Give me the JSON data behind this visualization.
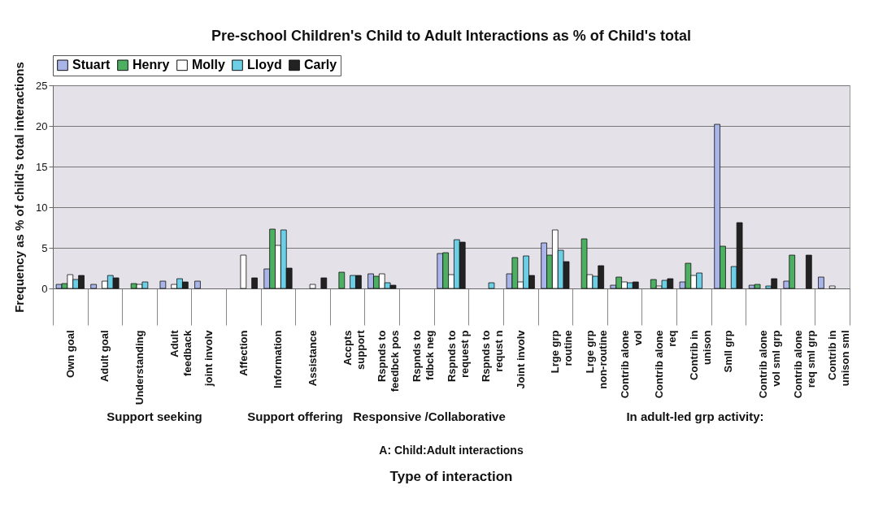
{
  "chart_data": {
    "type": "bar",
    "title": "Pre-school Children's Child to Adult Interactions as % of Child's total",
    "xlabel": "Type of interaction",
    "ylabel": "Frequency as % of child's total interactions",
    "categories": [
      "Own goal",
      "Adult goal",
      "Understanding",
      "Adult feedback",
      "joint involv",
      "Affection",
      "Information",
      "Assistance",
      "Accpts support",
      "Rspnds to feedbck pos",
      "Rspnds to fdbck neg",
      "Rspnds to request p",
      "Rspnds to requst n",
      "Joint involv",
      "Lrge grp routine",
      "Lrge grp non-routine",
      "Contrib alone vol",
      "Contrib alone req",
      "Contrib in unison",
      "Smll grp",
      "Contrib alone vol sml grp",
      "Contrib alone req sml grp",
      "Contrib in unison sml"
    ],
    "series": [
      {
        "name": "Stuart",
        "color": "#a9b4e8",
        "values": [
          0.5,
          0.5,
          0,
          0.9,
          0.9,
          0,
          2.4,
          0,
          0,
          1.8,
          0,
          4.3,
          0,
          1.8,
          5.6,
          0,
          0.4,
          0,
          0.8,
          20.2,
          0.4,
          0.9,
          1.4
        ]
      },
      {
        "name": "Henry",
        "color": "#4caf62",
        "values": [
          0.6,
          0,
          0.6,
          0,
          0,
          0,
          7.3,
          0,
          2.0,
          1.5,
          0,
          4.4,
          0,
          3.8,
          4.1,
          6.1,
          1.4,
          1.1,
          3.1,
          5.2,
          0.5,
          4.1,
          0
        ]
      },
      {
        "name": "Molly",
        "color": "#ffffff",
        "values": [
          1.7,
          0.9,
          0.5,
          0.5,
          0,
          4.1,
          5.3,
          0.5,
          0,
          1.8,
          0,
          1.7,
          0,
          0.8,
          7.2,
          1.7,
          0.8,
          0.3,
          1.6,
          0,
          0,
          0,
          0.3
        ]
      },
      {
        "name": "Lloyd",
        "color": "#6ccfe6",
        "values": [
          1.1,
          1.6,
          0.8,
          1.2,
          0,
          0,
          7.2,
          0,
          1.6,
          0.7,
          0,
          6.0,
          0.7,
          4.0,
          4.7,
          1.5,
          0.7,
          1.0,
          1.9,
          2.7,
          0.3,
          0,
          0
        ]
      },
      {
        "name": "Carly",
        "color": "#222222",
        "values": [
          1.6,
          1.3,
          0,
          0.8,
          0,
          1.3,
          2.5,
          1.3,
          1.6,
          0.4,
          0,
          5.7,
          0,
          1.6,
          3.3,
          2.8,
          0.8,
          1.2,
          0,
          8.1,
          1.2,
          4.1,
          0
        ]
      }
    ],
    "ylim": [
      0,
      25
    ],
    "yticks": [
      0,
      5,
      10,
      15,
      20,
      25
    ],
    "grid": "y",
    "legend": "top",
    "annotations": [
      "Support seeking",
      "Support offering",
      "Responsive /Collaborative",
      "In adult-led grp activity:",
      "A: Child:Adult interactions"
    ]
  }
}
